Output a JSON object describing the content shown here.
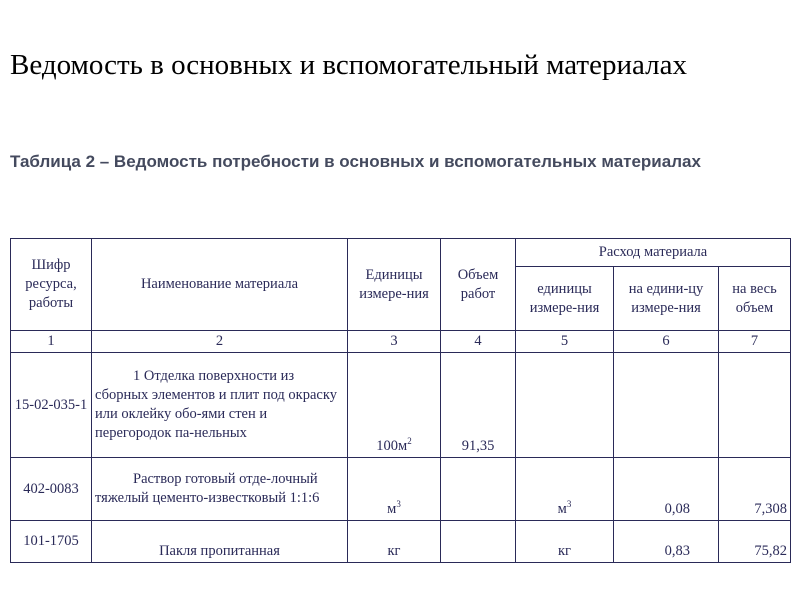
{
  "title": "Ведомость в основных и вспомогательный материалах",
  "caption": "Таблица 2 – Ведомость потребности в основных и вспомогательных материалах",
  "table": {
    "headers": {
      "code": "Шифр ресурса, работы",
      "name": "Наименование материала",
      "unit": "Единицы измере-ния",
      "volume": "Объем работ",
      "consumption": "Расход материала",
      "cons_unit": "единицы измере-ния",
      "per_unit": "на едини-цу измере-ния",
      "total": "на весь объем"
    },
    "numbers": [
      "1",
      "2",
      "3",
      "4",
      "5",
      "6",
      "7"
    ],
    "rows": [
      {
        "code": "15-02-035-1",
        "name": "1 Отделка поверхности из сборных элементов и плит под окраску или оклейку обо-ями стен и перегородок па-нельных",
        "unit": "100м",
        "unit_sup": "2",
        "volume": "91,35",
        "cons_unit": "",
        "cons_unit_sup": "",
        "per_unit": "",
        "total": ""
      },
      {
        "code": "402-0083",
        "name": "Раствор готовый отде-лочный тяжелый цементо-известковый 1:1:6",
        "unit": "м",
        "unit_sup": "3",
        "volume": "",
        "cons_unit": "м",
        "cons_unit_sup": "3",
        "per_unit": "0,08",
        "total": "7,308"
      },
      {
        "code": "101-1705",
        "name": "Пакля пропитанная",
        "unit": "кг",
        "unit_sup": "",
        "volume": "",
        "cons_unit": "кг",
        "cons_unit_sup": "",
        "per_unit": "0,83",
        "total": "75,82"
      }
    ]
  }
}
